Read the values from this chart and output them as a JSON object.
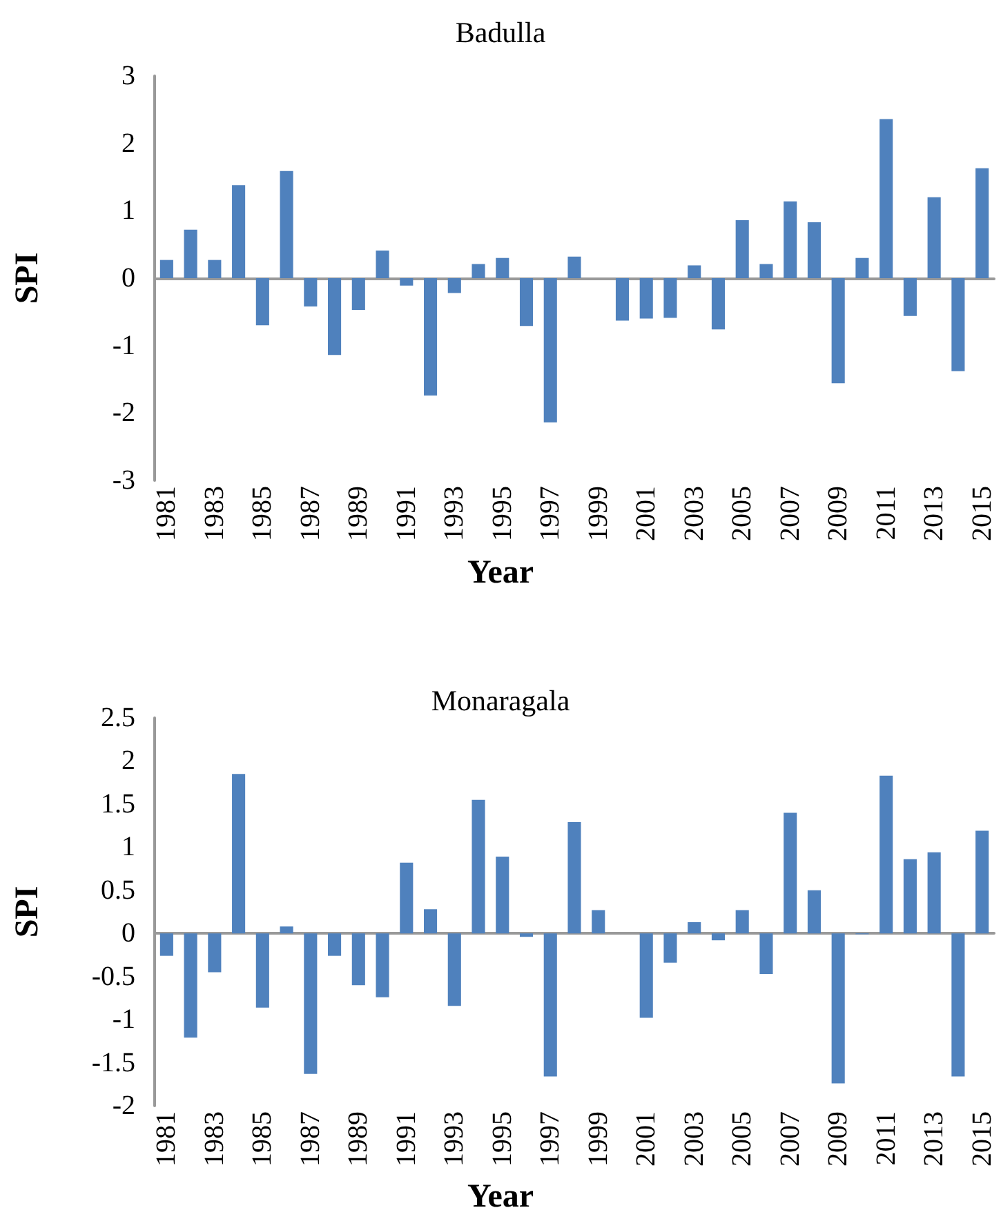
{
  "chart_data": [
    {
      "type": "bar",
      "title": "Badulla",
      "xlabel": "Year",
      "ylabel": "SPI",
      "color": "#4f81bd",
      "ylim": [
        -3,
        3
      ],
      "yticks": [
        -3,
        -2,
        -1,
        0,
        1,
        2,
        3
      ],
      "categories": [
        "1981",
        null,
        "1983",
        null,
        "1985",
        null,
        "1987",
        null,
        "1989",
        null,
        "1991",
        null,
        "1993",
        null,
        "1995",
        null,
        "1997",
        null,
        "1999",
        null,
        "2001",
        null,
        "2003",
        null,
        "2005",
        null,
        "2007",
        null,
        "2009",
        null,
        "2011",
        null,
        "2013",
        null,
        "2015"
      ],
      "values": [
        0.27,
        0.72,
        0.27,
        1.38,
        -0.7,
        1.59,
        -0.42,
        -1.14,
        -0.47,
        0.41,
        -0.11,
        -1.74,
        -0.22,
        0.21,
        0.3,
        -0.71,
        -2.14,
        0.32,
        0,
        -0.63,
        -0.6,
        -0.59,
        0.19,
        -0.76,
        0.86,
        0.21,
        1.14,
        0.83,
        -1.56,
        0.3,
        2.36,
        -0.56,
        1.2,
        -1.38,
        1.63
      ]
    },
    {
      "type": "bar",
      "title": "Monaragala",
      "xlabel": "Year",
      "ylabel": "SPI",
      "color": "#4f81bd",
      "ylim": [
        -2,
        2.5
      ],
      "yticks": [
        -2,
        -1.5,
        -1,
        -0.5,
        0,
        0.5,
        1,
        1.5,
        2,
        2.5
      ],
      "categories": [
        "1981",
        null,
        "1983",
        null,
        "1985",
        null,
        "1987",
        null,
        "1989",
        null,
        "1991",
        null,
        "1993",
        null,
        "1995",
        null,
        "1997",
        null,
        "1999",
        null,
        "2001",
        null,
        "2003",
        null,
        "2005",
        null,
        "2007",
        null,
        "2009",
        null,
        "2011",
        null,
        "2013",
        null,
        "2015"
      ],
      "values": [
        -0.26,
        -1.21,
        -0.45,
        1.85,
        -0.86,
        0.08,
        -1.63,
        -0.26,
        -0.6,
        -0.74,
        0.82,
        0.28,
        -0.84,
        1.55,
        0.89,
        -0.04,
        -1.66,
        1.29,
        0.27,
        0,
        -0.98,
        -0.34,
        0.13,
        -0.08,
        0.27,
        -0.47,
        1.4,
        0.5,
        -1.74,
        -0.01,
        1.83,
        0.86,
        0.94,
        -1.66,
        1.19
      ]
    }
  ]
}
